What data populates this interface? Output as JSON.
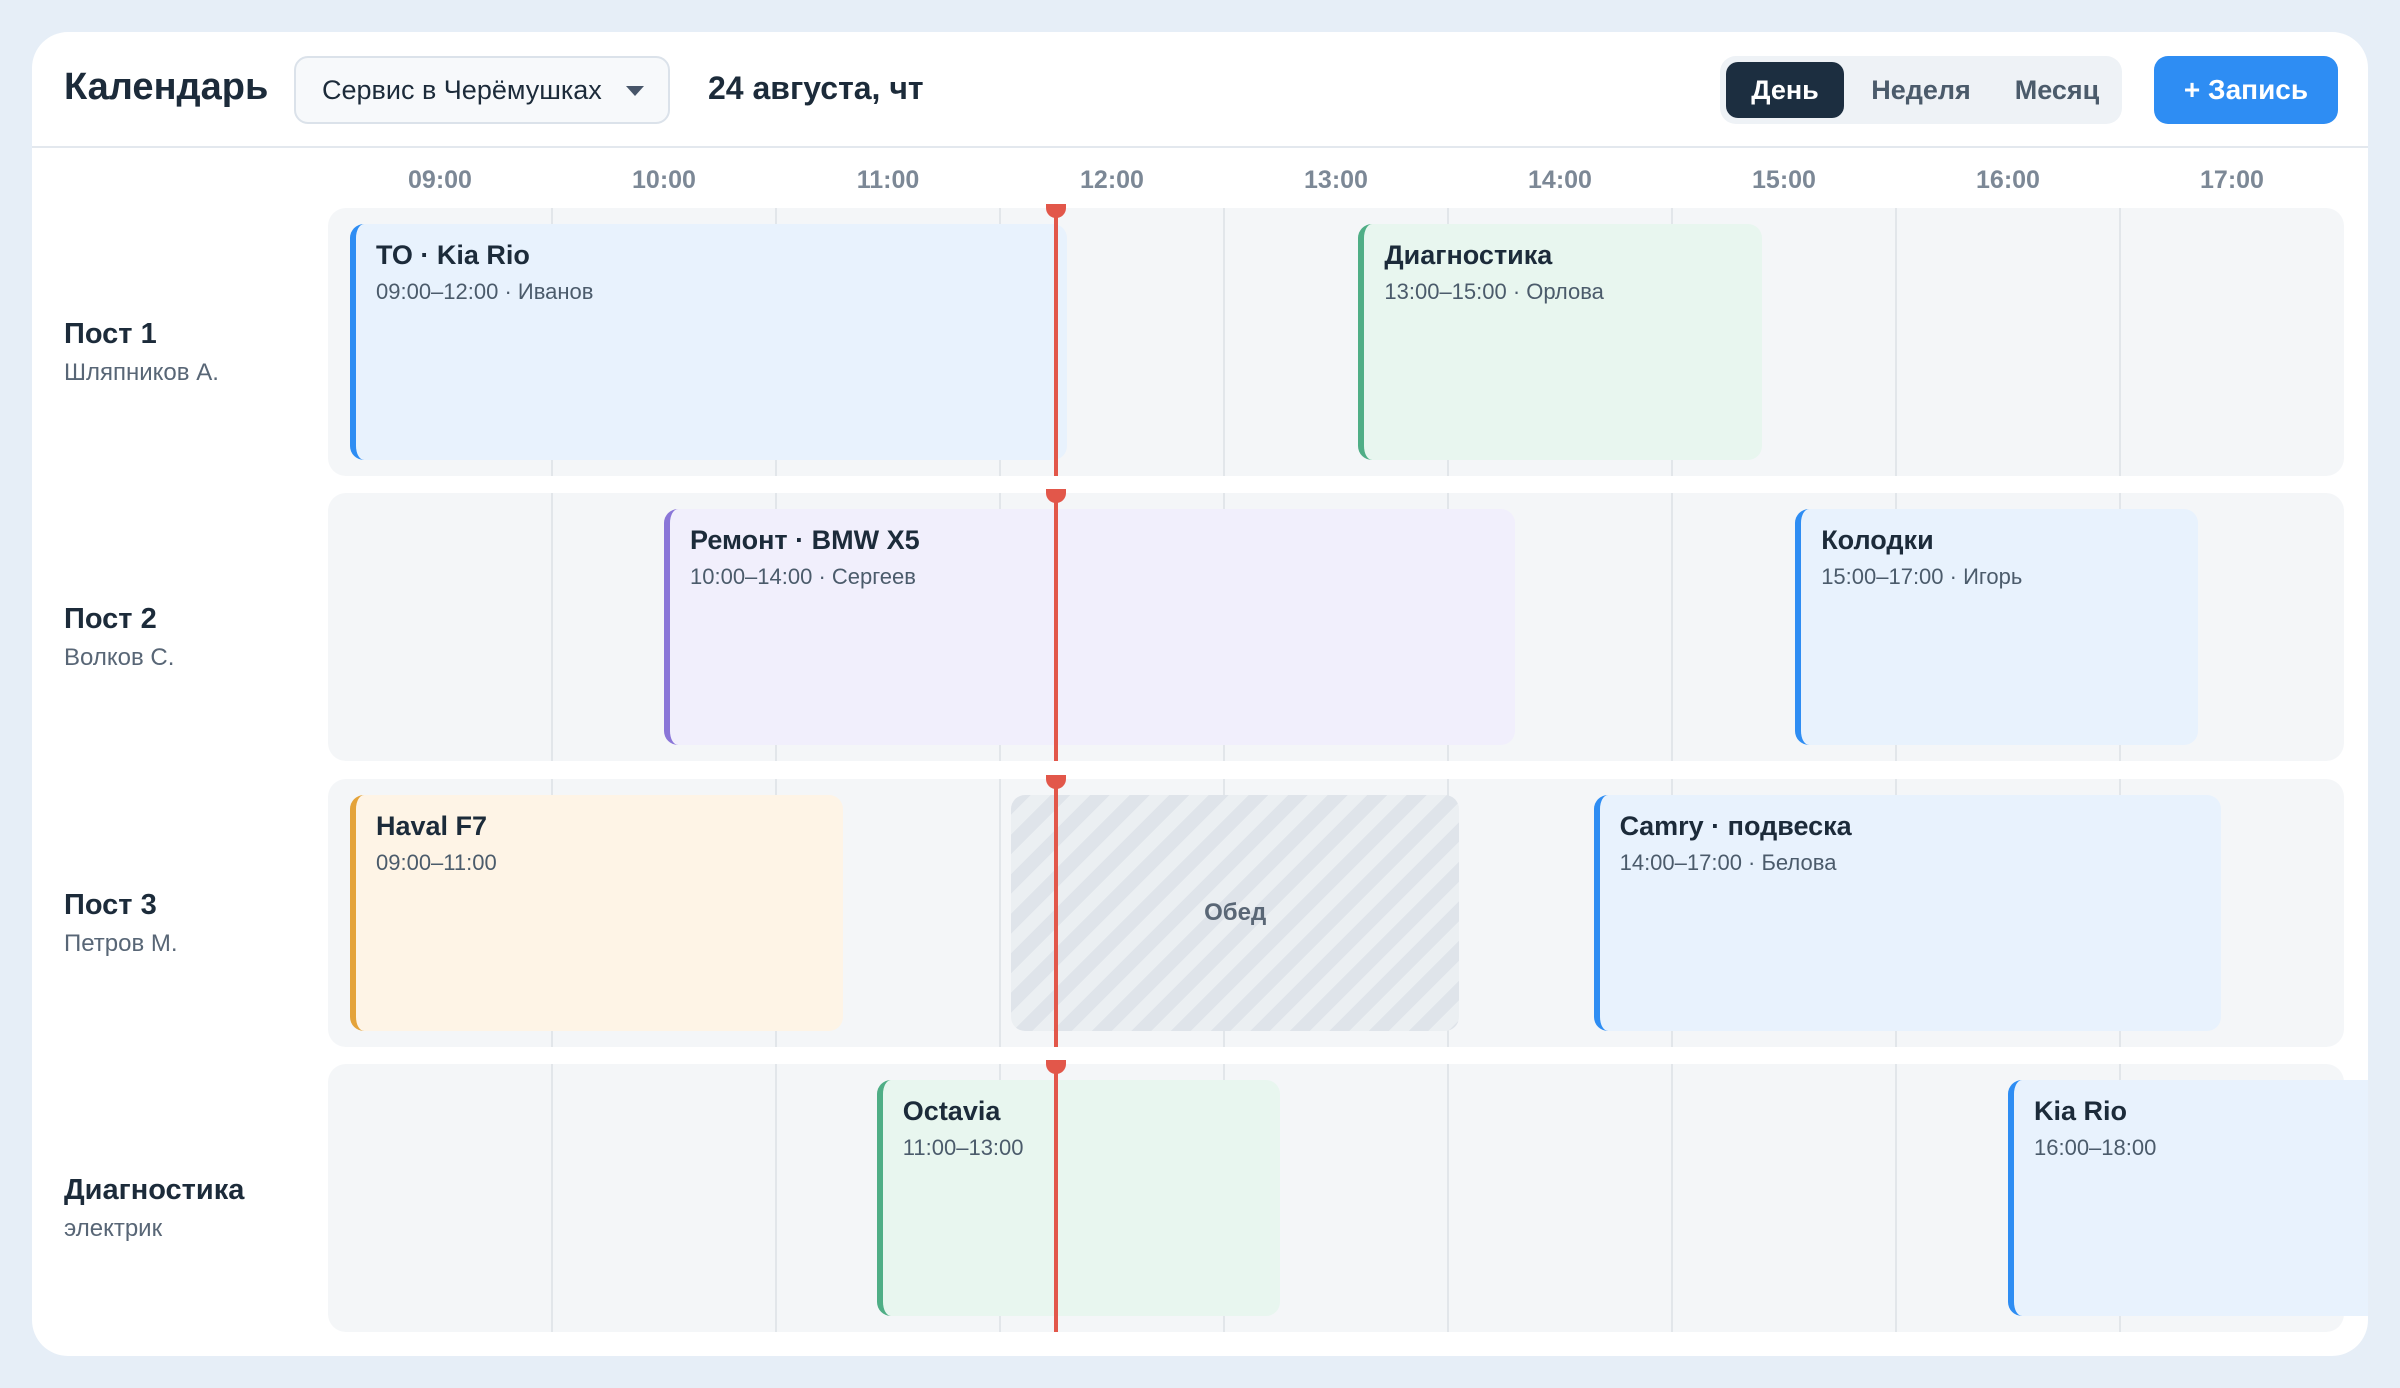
{
  "header": {
    "title": "Календарь",
    "location_select": "Сервис в Черёмушках",
    "date": "24 августа, чт",
    "views": [
      {
        "label": "День",
        "active": true
      },
      {
        "label": "Неделя",
        "active": false
      },
      {
        "label": "Месяц",
        "active": false
      }
    ],
    "add_button": "+ Запись"
  },
  "hours": [
    "09:00",
    "10:00",
    "11:00",
    "12:00",
    "13:00",
    "14:00",
    "15:00",
    "16:00",
    "17:00"
  ],
  "current_time": "11:45",
  "rows": [
    {
      "name": "Пост 1",
      "staff": "Шляпников А.",
      "events": [
        {
          "title": "ТО · Kia Rio",
          "meta": "09:00–12:00 · Иванов",
          "color": "blue"
        },
        {
          "title": "Диагностика",
          "meta": "13:00–15:00 · Орлова",
          "color": "green"
        }
      ]
    },
    {
      "name": "Пост 2",
      "staff": "Волков С.",
      "events": [
        {
          "title": "Ремонт · BMW X5",
          "meta": "10:00–14:00 · Сергеев",
          "color": "purple"
        },
        {
          "title": "Колодки",
          "meta": "15:00–17:00 · Игорь",
          "color": "blue"
        }
      ]
    },
    {
      "name": "Пост 3",
      "staff": "Петров М.",
      "events": [
        {
          "title": "Haval F7",
          "meta": "09:00–11:00",
          "color": "orange"
        },
        {
          "title": "Camry · подвеска",
          "meta": "14:00–17:00 · Белова",
          "color": "blue"
        }
      ],
      "break": {
        "label": "Обед"
      }
    },
    {
      "name": "Диагностика",
      "staff": "электрик",
      "events": [
        {
          "title": "Octavia",
          "meta": "11:00–13:00",
          "color": "green"
        },
        {
          "title": "Kia Rio",
          "meta": "16:00–18:00",
          "color": "blue"
        }
      ]
    }
  ],
  "colors": {
    "blue": {
      "bg": "#e8f2fd",
      "bar": "#2e8df3"
    },
    "green": {
      "bg": "#e8f6ef",
      "bar": "#4fae86"
    },
    "purple": {
      "bg": "#f1effc",
      "bar": "#8a76d8"
    },
    "orange": {
      "bg": "#fef4e6",
      "bar": "#e4a33a"
    },
    "now": "#e2574a",
    "primary": "#2e8df3",
    "active_tab": "#1c2e40"
  }
}
